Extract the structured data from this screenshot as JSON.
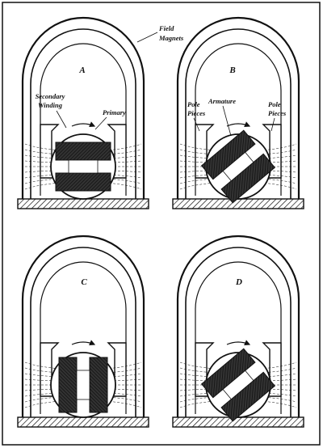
{
  "figure": {
    "labels": {
      "field_magnets": [
        "Field",
        "Magnets"
      ],
      "secondary_winding": [
        "Secondary",
        "Winding"
      ],
      "primary": "Primary",
      "pole_pieces": [
        "Pole",
        "Pieces"
      ],
      "armature": "Armature"
    },
    "panels": [
      {
        "letter": "A",
        "armature_angle_deg": 0
      },
      {
        "letter": "B",
        "armature_angle_deg": -40
      },
      {
        "letter": "C",
        "armature_angle_deg": 90
      },
      {
        "letter": "D",
        "armature_angle_deg": -40
      }
    ],
    "colors": {
      "ink": "#111111",
      "fill": "#2a2a2a",
      "background": "#ffffff"
    }
  }
}
